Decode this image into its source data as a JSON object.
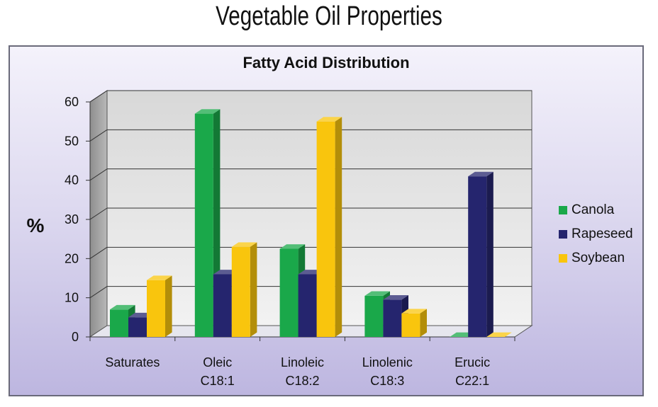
{
  "page": {
    "title": "Vegetable Oil Properties"
  },
  "chart_data": {
    "type": "bar",
    "title": "Fatty Acid Distribution",
    "xlabel": "",
    "ylabel": "%",
    "ylim": [
      0,
      60
    ],
    "yticks": [
      "0",
      "10",
      "20",
      "30",
      "40",
      "50",
      "60"
    ],
    "categories": [
      [
        "Saturates"
      ],
      [
        "Oleic",
        "C18:1"
      ],
      [
        "Linoleic",
        "C18:2"
      ],
      [
        "Linolenic",
        "C18:3"
      ],
      [
        "Erucic",
        "C22:1"
      ]
    ],
    "series": [
      {
        "name": "Canola",
        "color": "#1aa84a",
        "values": [
          7,
          57,
          22.5,
          10.5,
          0
        ]
      },
      {
        "name": "Rapeseed",
        "color": "#25256e",
        "values": [
          5,
          16,
          16,
          9.5,
          41
        ]
      },
      {
        "name": "Soybean",
        "color": "#f9c50d",
        "values": [
          14.5,
          23,
          55,
          6,
          0
        ]
      }
    ],
    "grid": true,
    "legend_position": "right"
  }
}
